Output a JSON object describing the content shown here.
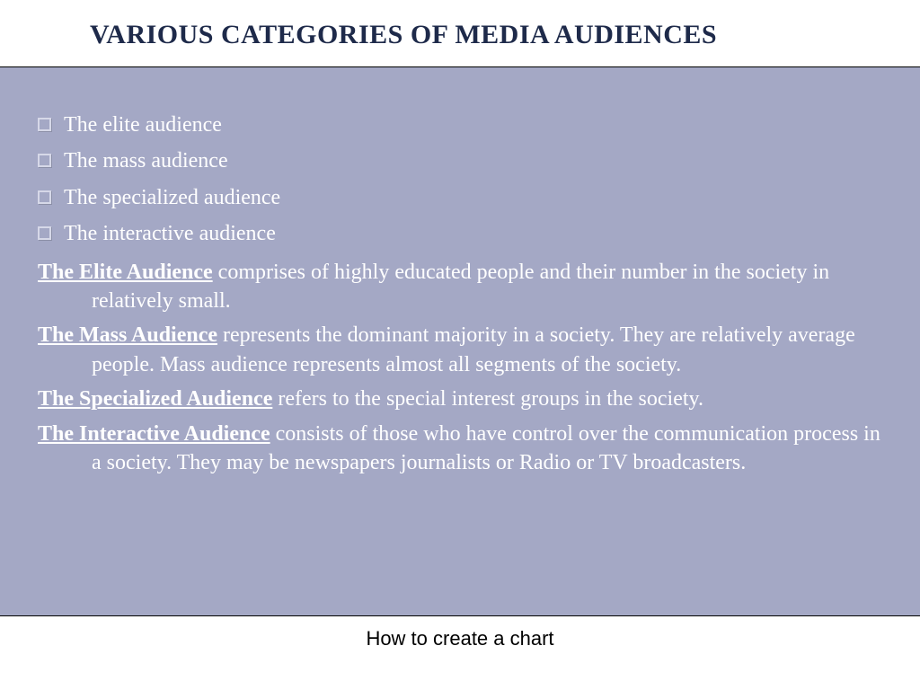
{
  "title": "VARIOUS CATEGORIES OF MEDIA AUDIENCES",
  "bullets": [
    "The elite audience",
    "The mass audience",
    "The specialized audience",
    "The interactive audience"
  ],
  "definitions": [
    {
      "heading": "The Elite Audience",
      "body": " comprises of highly educated people and their number in the society in relatively small."
    },
    {
      "heading": "The Mass Audience",
      "body": " represents the dominant majority in a society. They are relatively average people. Mass audience represents almost all segments of the society."
    },
    {
      "heading": "The Specialized Audience",
      "body": " refers to the special interest groups in the society."
    },
    {
      "heading": "The Interactive Audience",
      "body": " consists of those who have control over the communication process in a society. They may be newspapers journalists or Radio or TV broadcasters."
    }
  ],
  "footer": "How to create a chart",
  "colors": {
    "title_color": "#1e2a4a",
    "panel_background": "#a4a8c5",
    "text_color": "#ffffff",
    "border_color": "#000000"
  }
}
